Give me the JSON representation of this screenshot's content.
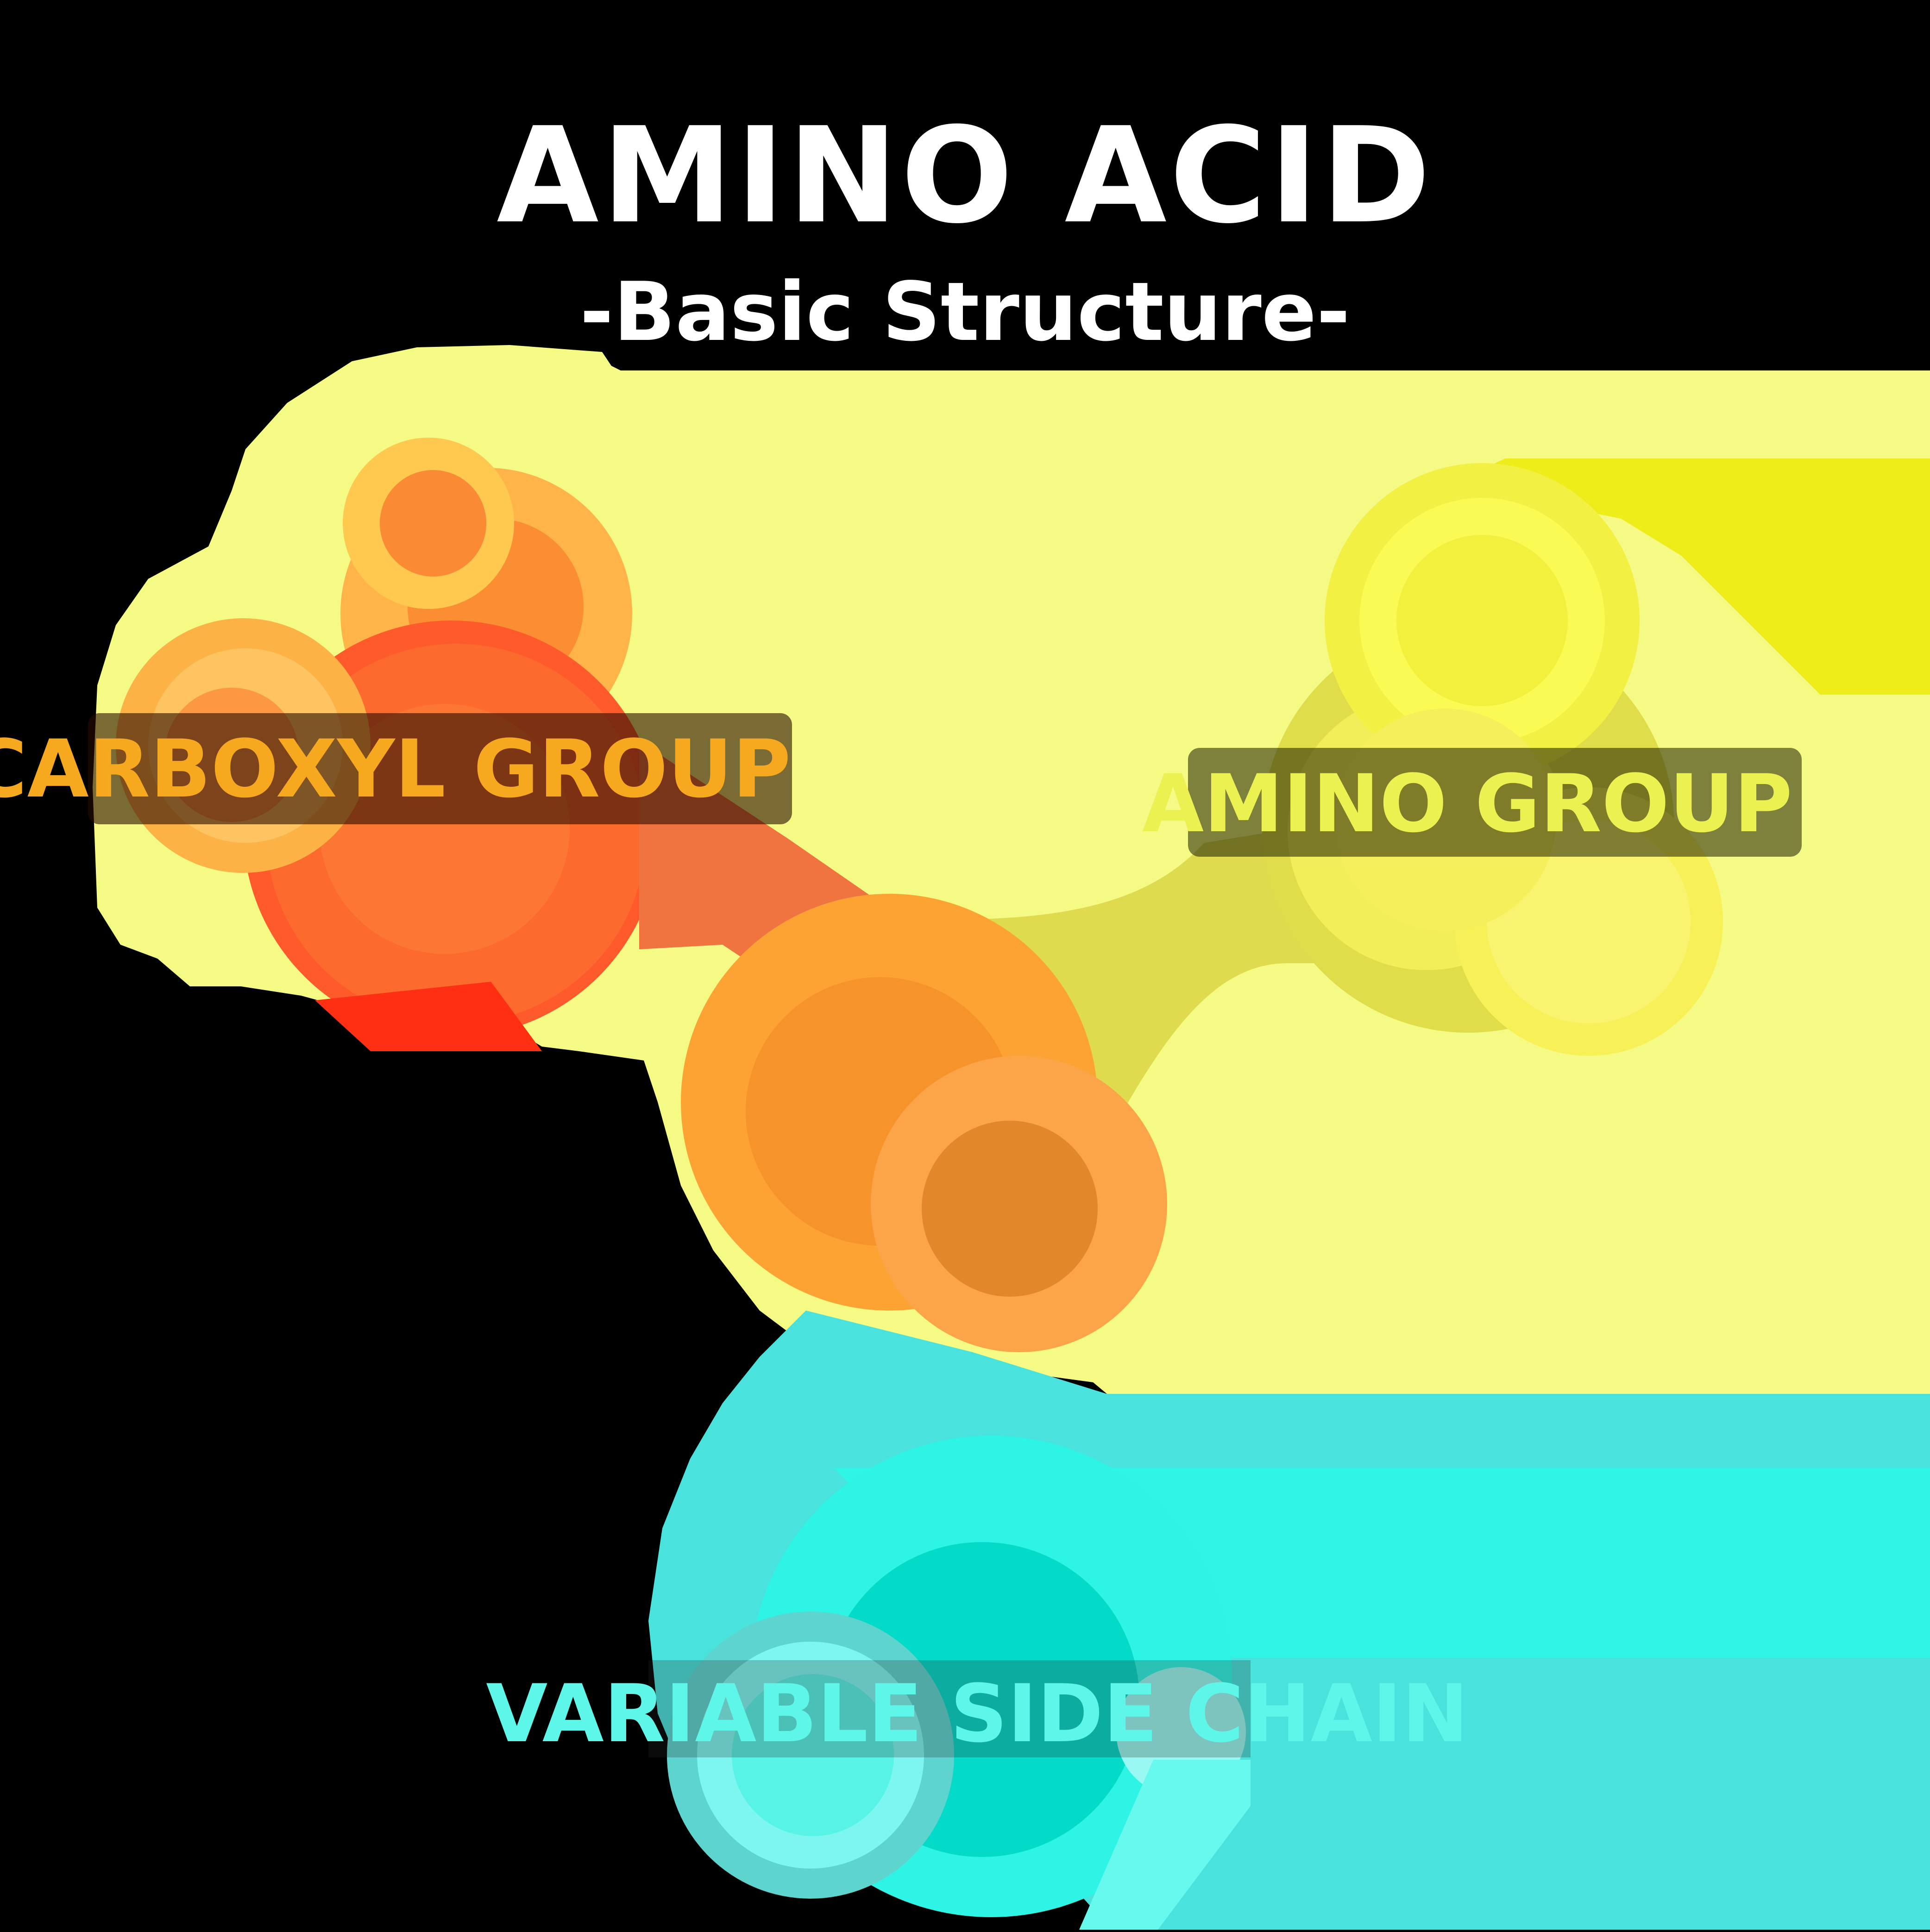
{
  "title": "AMINO ACID",
  "subtitle": "-Basic Structure-",
  "groups": {
    "carboxyl": {
      "label": "CARBOXYL GROUP",
      "color": "#f6a81f"
    },
    "amino": {
      "label": "AMINO GROUP",
      "color": "#ecf152"
    },
    "side_chain": {
      "label": "VARIABLE SIDE CHAIN",
      "color": "#5ef6e8"
    }
  },
  "colors": {
    "background": "#000000",
    "yellow_glow": "#f4fa84",
    "cyan_glow": "#35f2e3",
    "orange": "#f7942a",
    "red_orange": "#ff5a2c"
  }
}
